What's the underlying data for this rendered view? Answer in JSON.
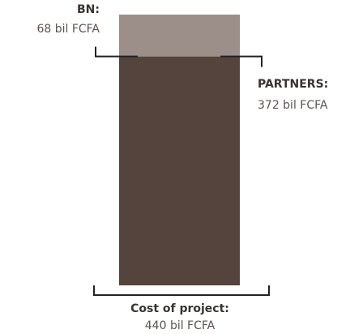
{
  "chart_data": {
    "type": "stacked-bar",
    "series": [
      {
        "name": "PARTNERS:",
        "color": "#55443d",
        "values": [
          372
        ],
        "value_labels": [
          "372 bil FCFA"
        ]
      },
      {
        "name": "BN:",
        "color": "#9c8e89",
        "values": [
          68
        ],
        "value_labels": [
          "68 bil FCFA"
        ]
      }
    ],
    "total": {
      "label": "Cost of project:",
      "value": 440,
      "value_label": "440 bil FCFA"
    }
  }
}
